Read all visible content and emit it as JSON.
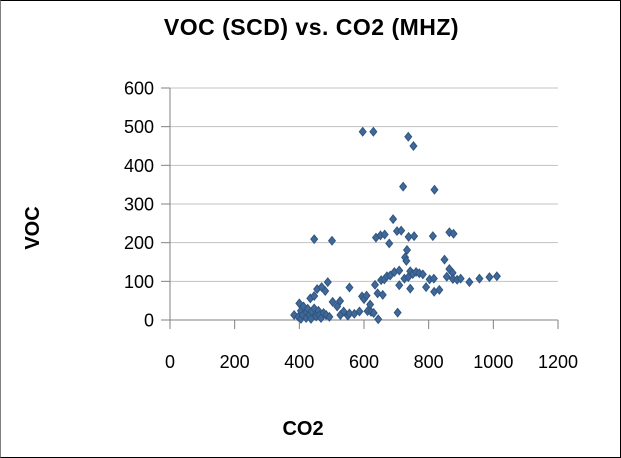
{
  "window": {
    "background": "#ffffff",
    "border_color": "#000000"
  },
  "chart_data": {
    "type": "scatter",
    "title": "VOC (SCD) vs. CO2 (MHZ)",
    "xlabel": "CO2",
    "ylabel": "VOC",
    "xlim": [
      0,
      1200
    ],
    "ylim": [
      0,
      600
    ],
    "x_ticks": [
      0,
      200,
      400,
      600,
      800,
      1000,
      1200
    ],
    "y_ticks": [
      0,
      100,
      200,
      300,
      400,
      500,
      600
    ],
    "grid": "horizontal",
    "legend": "none",
    "marker": {
      "shape": "diamond",
      "fill": "#3E699B",
      "stroke": "#32557F",
      "width": 6.8,
      "height": 8.4
    },
    "colors": {
      "gridline": "#C3C3C3",
      "axis": "#808080",
      "text": "#000000"
    },
    "points": [
      [
        384,
        13
      ],
      [
        397,
        8
      ],
      [
        400,
        43
      ],
      [
        405,
        24
      ],
      [
        405,
        3
      ],
      [
        410,
        13
      ],
      [
        413,
        35
      ],
      [
        421,
        20
      ],
      [
        421,
        5
      ],
      [
        426,
        29
      ],
      [
        431,
        13
      ],
      [
        434,
        56
      ],
      [
        436,
        3
      ],
      [
        438,
        22
      ],
      [
        446,
        62
      ],
      [
        446,
        30
      ],
      [
        446,
        209
      ],
      [
        452,
        15
      ],
      [
        452,
        9
      ],
      [
        455,
        80
      ],
      [
        459,
        24
      ],
      [
        462,
        12
      ],
      [
        467,
        5
      ],
      [
        469,
        85
      ],
      [
        475,
        18
      ],
      [
        480,
        75
      ],
      [
        483,
        13
      ],
      [
        488,
        98
      ],
      [
        493,
        8
      ],
      [
        501,
        205
      ],
      [
        503,
        47
      ],
      [
        517,
        35
      ],
      [
        526,
        49
      ],
      [
        527,
        13
      ],
      [
        537,
        22
      ],
      [
        550,
        11
      ],
      [
        555,
        84
      ],
      [
        555,
        17
      ],
      [
        570,
        16
      ],
      [
        586,
        22
      ],
      [
        594,
        61
      ],
      [
        596,
        487
      ],
      [
        600,
        54
      ],
      [
        608,
        63
      ],
      [
        611,
        23
      ],
      [
        619,
        40
      ],
      [
        622,
        21
      ],
      [
        629,
        487
      ],
      [
        630,
        18
      ],
      [
        634,
        91
      ],
      [
        637,
        213
      ],
      [
        642,
        69
      ],
      [
        644,
        2
      ],
      [
        651,
        219
      ],
      [
        653,
        103
      ],
      [
        658,
        65
      ],
      [
        663,
        105
      ],
      [
        664,
        221
      ],
      [
        671,
        113
      ],
      [
        678,
        198
      ],
      [
        681,
        115
      ],
      [
        690,
        261
      ],
      [
        694,
        124
      ],
      [
        702,
        230
      ],
      [
        704,
        19
      ],
      [
        709,
        128
      ],
      [
        709,
        90
      ],
      [
        715,
        231
      ],
      [
        721,
        345
      ],
      [
        725,
        107
      ],
      [
        727,
        162
      ],
      [
        731,
        153
      ],
      [
        733,
        181
      ],
      [
        737,
        474
      ],
      [
        737,
        111
      ],
      [
        738,
        215
      ],
      [
        743,
        126
      ],
      [
        743,
        81
      ],
      [
        751,
        119
      ],
      [
        753,
        450
      ],
      [
        755,
        217
      ],
      [
        761,
        124
      ],
      [
        771,
        121
      ],
      [
        782,
        118
      ],
      [
        792,
        85
      ],
      [
        803,
        105
      ],
      [
        813,
        217
      ],
      [
        816,
        107
      ],
      [
        817,
        73
      ],
      [
        818,
        337
      ],
      [
        833,
        78
      ],
      [
        849,
        156
      ],
      [
        856,
        112
      ],
      [
        864,
        227
      ],
      [
        864,
        132
      ],
      [
        874,
        122
      ],
      [
        875,
        106
      ],
      [
        877,
        223
      ],
      [
        888,
        104
      ],
      [
        899,
        107
      ],
      [
        926,
        98
      ],
      [
        957,
        107
      ],
      [
        988,
        111
      ],
      [
        1011,
        113
      ]
    ]
  }
}
